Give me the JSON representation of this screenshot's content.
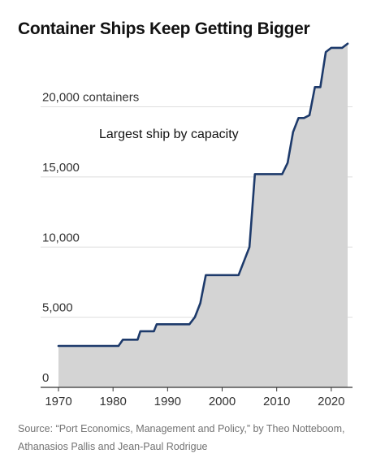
{
  "title": "Container Ships Keep Getting Bigger",
  "source": "Source: “Port Economics, Management and Policy,” by Theo Notteboom, Athanasios Pallis and Jean-Paul Rodrigue",
  "chart_data": {
    "type": "area",
    "title": "Container Ships Keep Getting Bigger",
    "annotation": "Largest ship by capacity",
    "xlabel": "",
    "ylabel": "",
    "xlim": [
      1967.5,
      2024
    ],
    "ylim": [
      0,
      25000
    ],
    "x_ticks": [
      1970,
      1980,
      1990,
      2000,
      2010,
      2020
    ],
    "x_tick_labels": [
      "1970",
      "1980",
      "1990",
      "2000",
      "2010",
      "2020"
    ],
    "y_ticks": [
      0,
      5000,
      10000,
      15000,
      20000
    ],
    "y_tick_labels": [
      "0",
      "5,000",
      "10,000",
      "15,000",
      "20,000 containers"
    ],
    "grid": true,
    "legend": "none",
    "fill_color": "#d4d4d4",
    "line_color": "#1d3a6b",
    "series": [
      {
        "x": [
          1970,
          1981,
          1981.8,
          1984.5,
          1985,
          1987.5,
          1988,
          1994,
          1995,
          1996,
          1997,
          2003,
          2005,
          2006,
          2007,
          2011,
          2012,
          2013,
          2014,
          2015,
          2016,
          2017,
          2018,
          2019,
          2020,
          2022,
          2023
        ],
        "y": [
          2950,
          2950,
          3400,
          3400,
          4000,
          4000,
          4500,
          4500,
          5000,
          6000,
          8000,
          8000,
          10000,
          15200,
          15200,
          15200,
          16000,
          18200,
          19200,
          19200,
          19400,
          21400,
          21400,
          23900,
          24200,
          24200,
          24500
        ]
      }
    ]
  }
}
